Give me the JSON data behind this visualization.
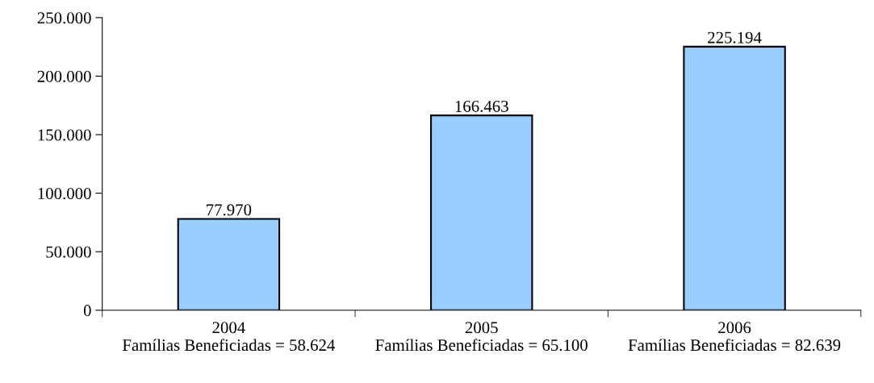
{
  "chart_data": {
    "type": "bar",
    "categories": [
      "2004\nFamílias Beneficiadas = 58.624",
      "2005\nFamílias Beneficiadas = 65.100",
      "2006\nFamílias Beneficiadas = 82.639"
    ],
    "values": [
      77970,
      166463,
      225194
    ],
    "value_labels": [
      "77.970",
      "166.463",
      "225.194"
    ],
    "color": "#99ccff",
    "ylim": [
      0,
      250000
    ],
    "yticks": [
      {
        "value": 0,
        "label": "0"
      },
      {
        "value": 50000,
        "label": "50.000"
      },
      {
        "value": 100000,
        "label": "100.000"
      },
      {
        "value": 150000,
        "label": "150.000"
      },
      {
        "value": 200000,
        "label": "200.000"
      },
      {
        "value": 250000,
        "label": "250.000"
      }
    ],
    "grid": false
  }
}
